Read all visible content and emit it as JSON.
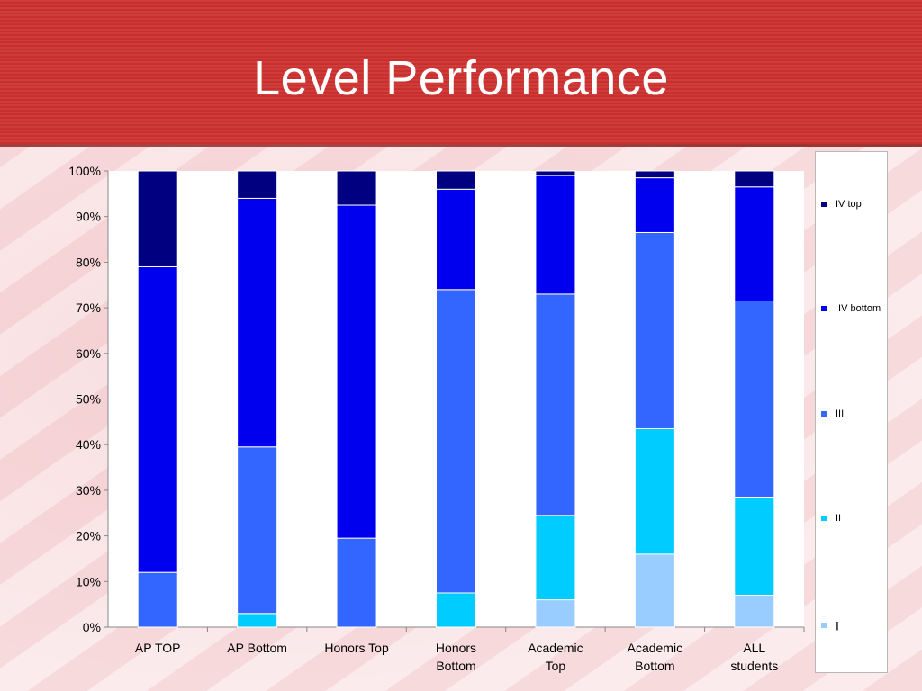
{
  "header": {
    "title": "Level Performance"
  },
  "chart_data": {
    "type": "bar",
    "stacked": true,
    "percent": true,
    "categories": [
      "AP TOP",
      "AP Bottom",
      "Honors Top",
      "Honors Bottom",
      "Academic Top",
      "Academic Bottom",
      "ALL students"
    ],
    "y_ticks": [
      "0%",
      "10%",
      "20%",
      "30%",
      "40%",
      "50%",
      "60%",
      "70%",
      "80%",
      "90%",
      "100%"
    ],
    "ylim": [
      0,
      100
    ],
    "grid": false,
    "legend_position": "right",
    "series": [
      {
        "name": "I",
        "color": "#99ccff",
        "values": [
          0,
          0,
          0,
          0,
          6,
          16,
          7
        ]
      },
      {
        "name": "II",
        "color": "#00ccff",
        "values": [
          0,
          3,
          0,
          7.5,
          18.5,
          27.5,
          21.5
        ]
      },
      {
        "name": "III",
        "color": "#3366ff",
        "values": [
          12,
          36.5,
          19.5,
          66.5,
          48.5,
          43,
          43
        ]
      },
      {
        "name": "IV bottom",
        "color": "#0000ee",
        "values": [
          67,
          54.5,
          73,
          22,
          26,
          12,
          25
        ]
      },
      {
        "name": "IV top",
        "color": "#000080",
        "values": [
          21,
          6,
          7.5,
          4,
          1,
          1.5,
          3.5
        ]
      }
    ],
    "legend_labels": [
      "IV top",
      " IV bottom",
      "III",
      "II",
      "I"
    ]
  }
}
